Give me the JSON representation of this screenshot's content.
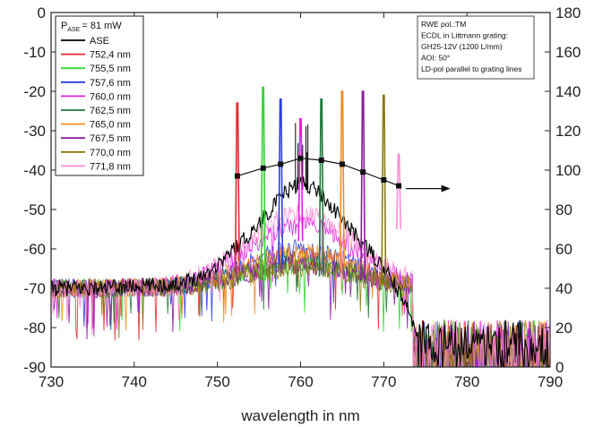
{
  "chart_data": {
    "type": "line",
    "xlabel": "wavelength in nm",
    "ylabel": "",
    "y2label": "",
    "xlim": [
      730,
      790
    ],
    "ylim": [
      -90,
      0
    ],
    "y2lim": [
      0,
      180
    ],
    "x_ticks": [
      730,
      740,
      750,
      760,
      770,
      780,
      790
    ],
    "y_ticks": [
      0,
      -10,
      -20,
      -30,
      -40,
      -50,
      -60,
      -70,
      -80,
      -90
    ],
    "y2_ticks": [
      180,
      160,
      140,
      120,
      100,
      80,
      60,
      40,
      20,
      0
    ],
    "legend": {
      "title_main": "P",
      "title_sub": "ASE",
      "title_value": "= 81 mW",
      "placement": "top-left"
    },
    "annotation": {
      "lines": [
        "RWE pol.:TM",
        "ECDL in Littmann grating:",
        "GH25-12V (1200 L/mm)",
        "AOI: 50°",
        "LD-pol parallel to grating lines"
      ],
      "placement": "top-right"
    },
    "ase": {
      "name": "ASE",
      "color": "#000000",
      "x": [
        730,
        735,
        740,
        745,
        748,
        750,
        752,
        754,
        756,
        758,
        760,
        762,
        764,
        766,
        768,
        770,
        771,
        772,
        773,
        774,
        776,
        780,
        785,
        790
      ],
      "y": [
        -70,
        -70,
        -69.5,
        -69,
        -67,
        -64,
        -60,
        -56,
        -51,
        -46,
        -43,
        -45,
        -50,
        -55,
        -60,
        -65,
        -68,
        -72,
        -76,
        -80,
        -80,
        -80,
        -80,
        -80
      ]
    },
    "series": [
      {
        "name": "752,4 nm",
        "color": "#e0282e",
        "peak_x": 752.4,
        "peak_y": -23,
        "base_peak": -62
      },
      {
        "name": "755,5 nm",
        "color": "#2fd62f",
        "peak_x": 755.5,
        "peak_y": -19,
        "base_peak": -64
      },
      {
        "name": "757,6 nm",
        "color": "#2b3ee0",
        "peak_x": 757.6,
        "peak_y": -22,
        "base_peak": -60
      },
      {
        "name": "760,0 nm",
        "color": "#e020e0",
        "peak_x": 760.0,
        "peak_y": -27,
        "base_peak": -54
      },
      {
        "name": "762,5 nm",
        "color": "#1f7a3a",
        "peak_x": 762.5,
        "peak_y": -22,
        "base_peak": -63
      },
      {
        "name": "765,0 nm",
        "color": "#f08c1e",
        "peak_x": 765.0,
        "peak_y": -20,
        "base_peak": -61
      },
      {
        "name": "767,5 nm",
        "color": "#8a1a9a",
        "peak_x": 767.5,
        "peak_y": -20,
        "base_peak": -64
      },
      {
        "name": "770,0 nm",
        "color": "#8a7a10",
        "peak_x": 770.0,
        "peak_y": -21,
        "base_peak": -65
      },
      {
        "name": "771,8 nm",
        "color": "#ff8ad8",
        "peak_x": 771.8,
        "peak_y": -36,
        "base_peak": -51
      }
    ],
    "right_axis_series": {
      "name": "right axis",
      "color": "#111111",
      "x": [
        752.4,
        755.5,
        757.6,
        760.0,
        762.5,
        765.0,
        767.5,
        770.0,
        771.8
      ],
      "y": [
        97,
        101,
        103,
        106,
        105,
        103,
        99,
        95,
        92
      ],
      "arrow_to_x": 778
    }
  }
}
